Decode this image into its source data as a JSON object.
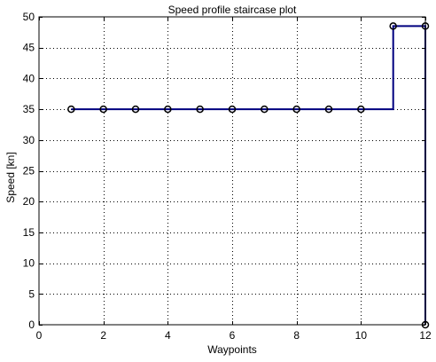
{
  "chart_data": {
    "type": "line",
    "title": "Speed profile staircase plot",
    "xlabel": "Waypoints",
    "ylabel": "Speed [kn]",
    "xlim": [
      0,
      12
    ],
    "ylim": [
      0,
      50
    ],
    "xticks": [
      0,
      2,
      4,
      6,
      8,
      10,
      12
    ],
    "yticks": [
      0,
      5,
      10,
      15,
      20,
      25,
      30,
      35,
      40,
      45,
      50
    ],
    "grid": true,
    "legend": "none",
    "step": "post",
    "series": [
      {
        "x": [
          1,
          2,
          3,
          4,
          5,
          6,
          7,
          8,
          9,
          10,
          11,
          12,
          12
        ],
        "y": [
          35,
          35,
          35,
          35,
          35,
          35,
          35,
          35,
          35,
          35,
          48.5,
          48.5,
          0
        ],
        "color": "#00007f",
        "marker": "circle",
        "marker_color": "#000000"
      }
    ]
  }
}
